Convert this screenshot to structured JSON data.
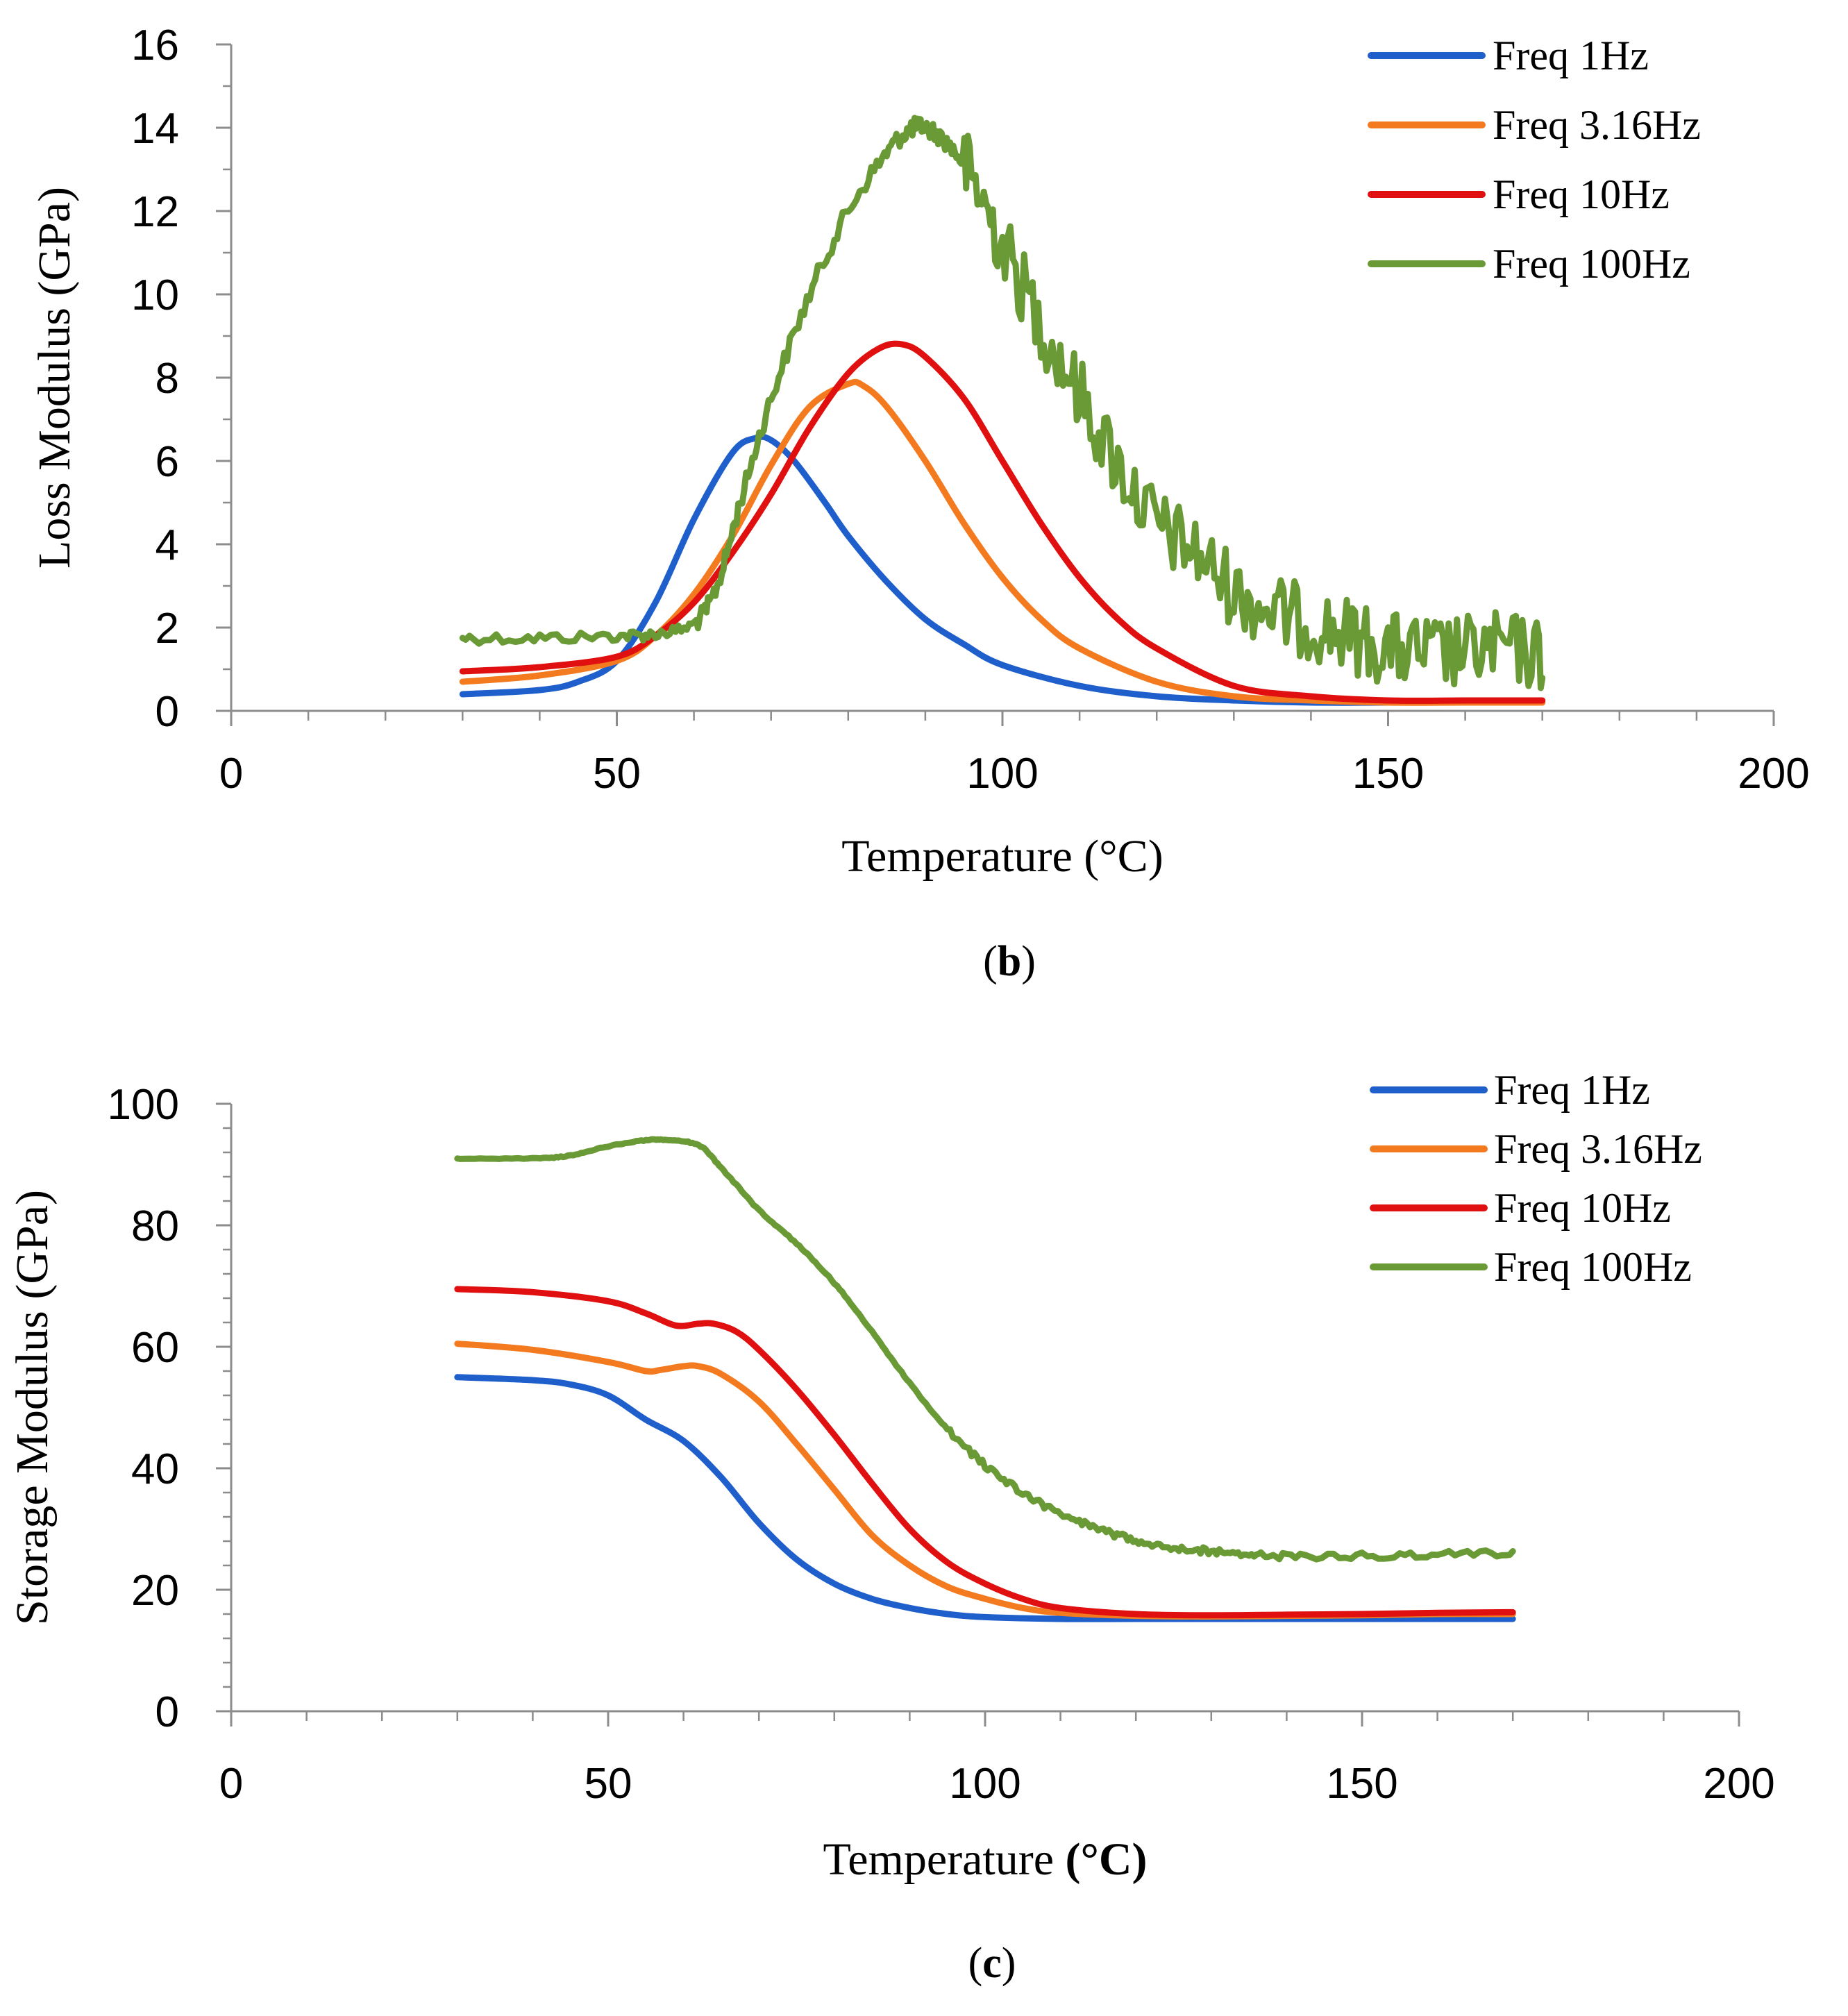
{
  "figure": {
    "panels": [
      {
        "caption": {
          "open": "(",
          "letter": "b",
          "close": ")"
        },
        "xlabel_parts": [
          {
            "text": "Temperature (°C)",
            "bold": false
          }
        ],
        "chart_data": {
          "type": "line",
          "title": "",
          "xlabel": "Temperature (°C)",
          "ylabel": "Loss Modulus (GPa)",
          "xlim": [
            0,
            200
          ],
          "ylim": [
            0,
            16
          ],
          "xticks": [
            0,
            50,
            100,
            150,
            200
          ],
          "yticks": [
            0,
            2,
            4,
            6,
            8,
            10,
            12,
            14,
            16
          ],
          "grid": false,
          "legend_position": "top-right",
          "series": [
            {
              "name": "Freq 1Hz",
              "color": "#1f5fcc",
              "x": [
                30,
                40,
                45,
                50,
                55,
                60,
                65,
                68,
                70,
                73,
                77,
                80,
                85,
                90,
                95,
                100,
                110,
                120,
                130,
                140,
                150,
                160,
                170
              ],
              "y": [
                0.4,
                0.5,
                0.7,
                1.2,
                2.6,
                4.6,
                6.2,
                6.55,
                6.5,
                6.0,
                5.0,
                4.2,
                3.1,
                2.2,
                1.6,
                1.1,
                0.6,
                0.35,
                0.25,
                0.2,
                0.2,
                0.2,
                0.2
              ]
            },
            {
              "name": "Freq 3.16Hz",
              "color": "#f47a1f",
              "x": [
                30,
                40,
                50,
                55,
                60,
                65,
                70,
                75,
                80,
                82,
                85,
                90,
                95,
                100,
                105,
                110,
                120,
                130,
                140,
                150,
                160,
                170
              ],
              "y": [
                0.7,
                0.85,
                1.2,
                1.8,
                2.8,
                4.2,
                5.9,
                7.3,
                7.85,
                7.8,
                7.3,
                6.0,
                4.5,
                3.2,
                2.2,
                1.5,
                0.7,
                0.35,
                0.25,
                0.2,
                0.2,
                0.2
              ]
            },
            {
              "name": "Freq 10Hz",
              "color": "#e01010",
              "x": [
                30,
                40,
                50,
                55,
                60,
                65,
                70,
                75,
                80,
                84,
                87,
                90,
                95,
                100,
                105,
                110,
                115,
                120,
                130,
                140,
                150,
                160,
                170
              ],
              "y": [
                0.95,
                1.05,
                1.3,
                1.8,
                2.6,
                3.8,
                5.2,
                6.8,
                8.1,
                8.7,
                8.8,
                8.5,
                7.5,
                6.0,
                4.5,
                3.2,
                2.2,
                1.5,
                0.6,
                0.35,
                0.25,
                0.25,
                0.25
              ]
            },
            {
              "name": "Freq 100Hz",
              "color": "#6a9a35",
              "x": [
                30,
                40,
                50,
                55,
                60,
                63,
                66,
                70,
                75,
                80,
                85,
                88,
                90,
                93,
                96,
                100,
                105,
                110,
                115,
                120,
                125,
                130,
                135,
                140,
                145,
                150,
                155,
                160,
                165,
                170
              ],
              "y": [
                1.75,
                1.75,
                1.8,
                1.85,
                2.1,
                3.0,
                5.0,
                7.5,
                10.0,
                12.0,
                13.4,
                13.95,
                14.0,
                13.6,
                12.8,
                11.2,
                9.3,
                7.6,
                5.9,
                4.5,
                3.8,
                2.9,
                2.4,
                2.1,
                1.8,
                1.5,
                1.4,
                1.4,
                1.5,
                1.3
              ]
            }
          ]
        }
      },
      {
        "caption": {
          "open": "(",
          "letter": "c",
          "close": ")"
        },
        "xlabel_parts": [
          {
            "text": "Temperature ",
            "bold": false
          },
          {
            "text": "(°C)",
            "bold": true
          }
        ],
        "chart_data": {
          "type": "line",
          "title": "",
          "xlabel": "Temperature (°C)",
          "ylabel": "Storage Modulus (GPa)",
          "xlim": [
            0,
            200
          ],
          "ylim": [
            0,
            100
          ],
          "xticks": [
            0,
            50,
            100,
            150,
            200
          ],
          "yticks": [
            0,
            20,
            40,
            60,
            80,
            100
          ],
          "grid": false,
          "legend_position": "top-right",
          "series": [
            {
              "name": "Freq 1Hz",
              "color": "#1f5fcc",
              "x": [
                30,
                40,
                45,
                50,
                55,
                60,
                65,
                70,
                75,
                80,
                85,
                90,
                95,
                100,
                110,
                120,
                130,
                140,
                150,
                160,
                170
              ],
              "y": [
                55,
                54.5,
                53.8,
                52,
                48,
                44.5,
                38.5,
                31,
                25,
                21,
                18.5,
                17,
                16,
                15.5,
                15.2,
                15.2,
                15.2,
                15.2,
                15.2,
                15.2,
                15.2
              ]
            },
            {
              "name": "Freq 3.16Hz",
              "color": "#f47a1f",
              "x": [
                30,
                40,
                50,
                55,
                57,
                60,
                62,
                65,
                70,
                75,
                80,
                85,
                90,
                95,
                100,
                105,
                110,
                120,
                130,
                140,
                150,
                160,
                170
              ],
              "y": [
                60.5,
                59.5,
                57.5,
                56,
                56.2,
                56.8,
                56.8,
                55.5,
                51,
                44,
                36.5,
                29,
                24,
                20.5,
                18.5,
                17,
                16.2,
                15.7,
                15.6,
                15.7,
                15.8,
                16,
                16
              ]
            },
            {
              "name": "Freq 10Hz",
              "color": "#e01010",
              "x": [
                30,
                40,
                50,
                55,
                59,
                62,
                64,
                67,
                70,
                75,
                80,
                85,
                90,
                95,
                100,
                105,
                110,
                120,
                130,
                140,
                150,
                160,
                170
              ],
              "y": [
                69.5,
                69,
                67.5,
                65.5,
                63.5,
                63.8,
                63.8,
                62.5,
                59.5,
                53,
                45.5,
                37.5,
                30,
                24.5,
                21,
                18.5,
                17,
                16,
                15.8,
                15.9,
                16,
                16.2,
                16.3
              ]
            },
            {
              "name": "Freq 100Hz",
              "color": "#6a9a35",
              "x": [
                30,
                40,
                45,
                50,
                55,
                58,
                62,
                65,
                70,
                75,
                80,
                85,
                90,
                95,
                100,
                105,
                110,
                115,
                120,
                125,
                130,
                135,
                140,
                150,
                160,
                170
              ],
              "y": [
                91,
                91,
                91.5,
                93,
                94,
                94,
                93.2,
                89.5,
                82.5,
                77,
                70.5,
                62.5,
                54,
                46.5,
                40.5,
                36,
                32.5,
                30,
                28.2,
                27,
                26.3,
                25.8,
                25.5,
                25.6,
                25.8,
                26
              ]
            }
          ]
        }
      }
    ]
  }
}
